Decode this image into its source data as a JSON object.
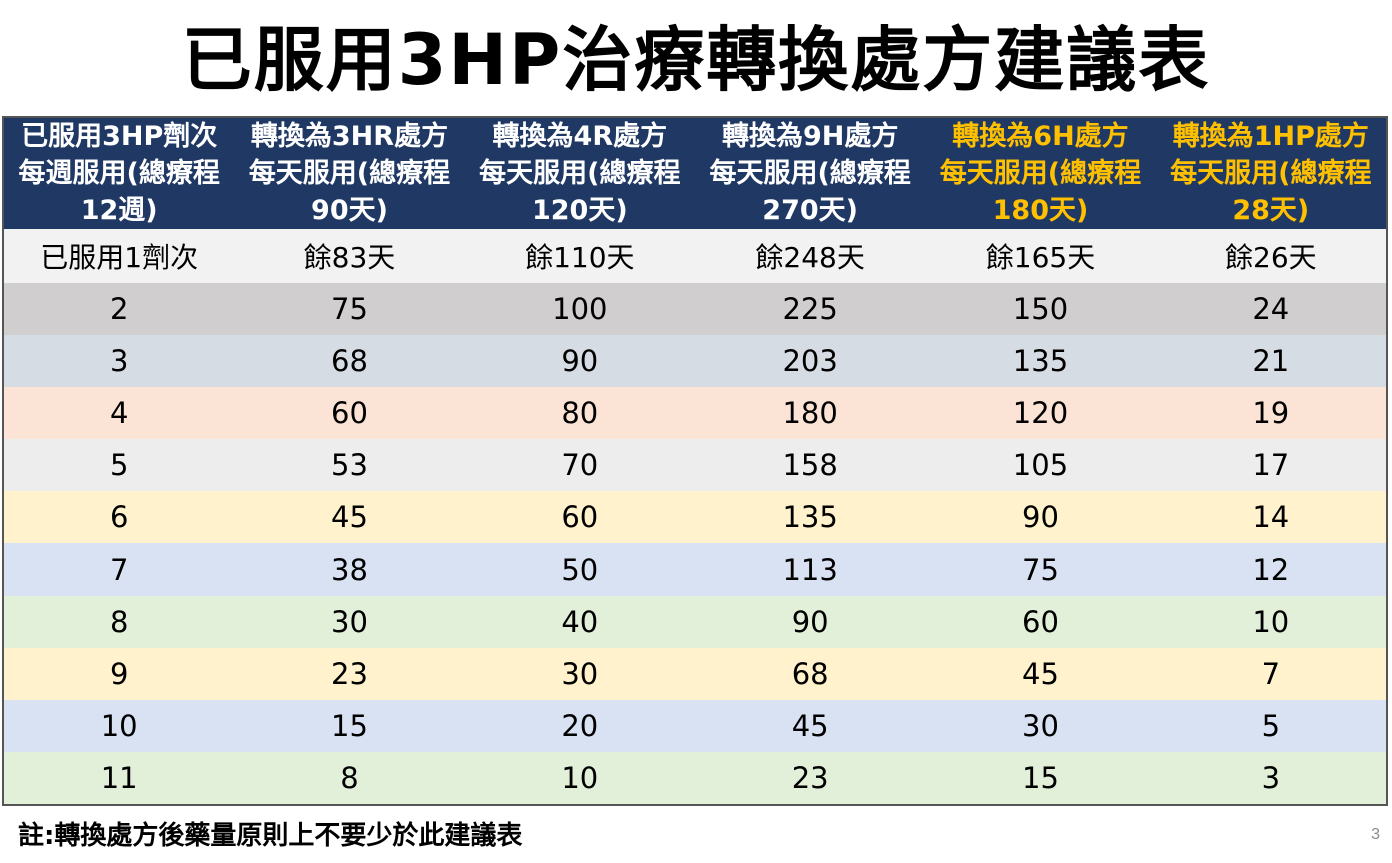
{
  "title": "已服用3HP治療轉換處方建議表",
  "table": {
    "headers": [
      "已服用3HP劑次\n每週服用(總療程\n12週)",
      "轉換為3HR處方\n每天服用(總療程\n90天)",
      "轉換為4R處方\n每天服用(總療程\n120天)",
      "轉換為9H處方\n每天服用(總療程\n270天)",
      "轉換為6H處方\n每天服用(總療程\n180天)",
      "轉換為1HP處方\n每天服用(總療程\n28天)"
    ],
    "highlight_header_color": "#ffc000",
    "header_bg": "#1f3864",
    "subheader_row": [
      "已服用1劑次",
      "餘83天",
      "餘110天",
      "餘248天",
      "餘165天",
      "餘26天"
    ],
    "subheader_bg": "#f2f2f2",
    "rows": [
      {
        "bg": "#d0cece",
        "cells": [
          "2",
          "75",
          "100",
          "225",
          "150",
          "24"
        ]
      },
      {
        "bg": "#d6dce4",
        "cells": [
          "3",
          "68",
          "90",
          "203",
          "135",
          "21"
        ]
      },
      {
        "bg": "#fbe4d5",
        "cells": [
          "4",
          "60",
          "80",
          "180",
          "120",
          "19"
        ]
      },
      {
        "bg": "#ededed",
        "cells": [
          "5",
          "53",
          "70",
          "158",
          "105",
          "17"
        ]
      },
      {
        "bg": "#fff2cc",
        "cells": [
          "6",
          "45",
          "60",
          "135",
          "90",
          "14"
        ]
      },
      {
        "bg": "#d9e2f3",
        "cells": [
          "7",
          "38",
          "50",
          "113",
          "75",
          "12"
        ]
      },
      {
        "bg": "#e2efd9",
        "cells": [
          "8",
          "30",
          "40",
          "90",
          "60",
          "10"
        ]
      },
      {
        "bg": "#fff2cc",
        "cells": [
          "9",
          "23",
          "30",
          "68",
          "45",
          "7"
        ]
      },
      {
        "bg": "#d9e2f3",
        "cells": [
          "10",
          "15",
          "20",
          "45",
          "30",
          "5"
        ]
      },
      {
        "bg": "#e2efd9",
        "cells": [
          "11",
          "8",
          "10",
          "23",
          "15",
          "3"
        ]
      }
    ]
  },
  "note": "註:轉換處方後藥量原則上不要少於此建議表",
  "page_number": "3"
}
